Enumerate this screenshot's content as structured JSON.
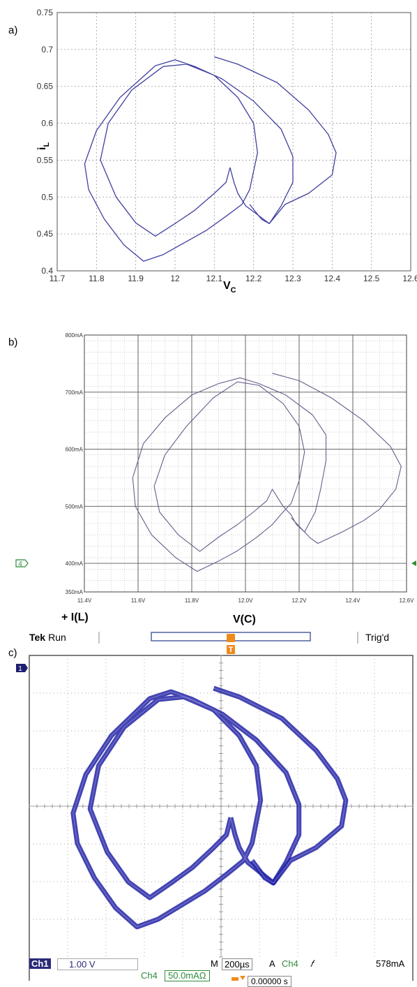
{
  "panel_labels": [
    "a)",
    "b)",
    "c)"
  ],
  "chart_data": [
    {
      "type": "line",
      "panel": "a)",
      "xlabel": "V",
      "xlabel_sub": "C",
      "ylabel": "i",
      "ylabel_sub": "L",
      "xlim": [
        11.7,
        12.6
      ],
      "ylim": [
        0.4,
        0.75
      ],
      "x_ticks": [
        "11.7",
        "11.8",
        "11.9",
        "12",
        "12.1",
        "12.2",
        "12.3",
        "12.4",
        "12.5",
        "12.6"
      ],
      "y_ticks": [
        "0.4",
        "0.45",
        "0.5",
        "0.55",
        "0.6",
        "0.65",
        "0.7",
        "0.75"
      ],
      "grid": true,
      "color": "#3f3fa0",
      "series": [
        {
          "points": [
            [
              12.14,
              0.54
            ],
            [
              12.13,
              0.52
            ],
            [
              12.1,
              0.505
            ],
            [
              12.05,
              0.482
            ],
            [
              12.0,
              0.464
            ],
            [
              11.95,
              0.447
            ],
            [
              11.9,
              0.465
            ],
            [
              11.85,
              0.5
            ],
            [
              11.81,
              0.55
            ],
            [
              11.83,
              0.6
            ],
            [
              11.89,
              0.645
            ],
            [
              11.97,
              0.677
            ],
            [
              12.03,
              0.68
            ],
            [
              12.1,
              0.665
            ],
            [
              12.16,
              0.635
            ],
            [
              12.2,
              0.6
            ],
            [
              12.21,
              0.56
            ],
            [
              12.19,
              0.51
            ],
            [
              12.17,
              0.49
            ],
            [
              12.13,
              0.474
            ],
            [
              12.08,
              0.455
            ],
            [
              12.02,
              0.437
            ],
            [
              11.97,
              0.422
            ],
            [
              11.92,
              0.413
            ],
            [
              11.87,
              0.435
            ],
            [
              11.82,
              0.47
            ],
            [
              11.78,
              0.51
            ],
            [
              11.77,
              0.545
            ],
            [
              11.8,
              0.59
            ],
            [
              11.86,
              0.635
            ],
            [
              11.95,
              0.678
            ],
            [
              12.0,
              0.686
            ],
            [
              12.05,
              0.677
            ],
            [
              12.12,
              0.66
            ],
            [
              12.2,
              0.63
            ],
            [
              12.27,
              0.592
            ],
            [
              12.3,
              0.555
            ],
            [
              12.3,
              0.52
            ],
            [
              12.27,
              0.488
            ],
            [
              12.24,
              0.464
            ],
            [
              12.2,
              0.48
            ],
            [
              12.18,
              0.488
            ],
            [
              12.16,
              0.505
            ],
            [
              12.15,
              0.52
            ],
            [
              12.14,
              0.54
            ]
          ]
        },
        {
          "points": [
            [
              12.1,
              0.69
            ],
            [
              12.16,
              0.68
            ],
            [
              12.26,
              0.655
            ],
            [
              12.34,
              0.618
            ],
            [
              12.39,
              0.585
            ],
            [
              12.41,
              0.56
            ],
            [
              12.4,
              0.53
            ],
            [
              12.34,
              0.505
            ],
            [
              12.28,
              0.49
            ],
            [
              12.24,
              0.464
            ],
            [
              12.22,
              0.47
            ],
            [
              12.19,
              0.49
            ]
          ]
        }
      ]
    },
    {
      "type": "line",
      "panel": "b)",
      "xlabel": "V(C)",
      "legend_label": "+ I(L)",
      "xlim": [
        11.4,
        12.6
      ],
      "ylim": [
        350,
        800
      ],
      "x_ticks": [
        "11.4V",
        "11.6V",
        "11.8V",
        "12.0V",
        "12.2V",
        "12.4V",
        "12.6V"
      ],
      "y_ticks": [
        "350mA",
        "400mA",
        "500mA",
        "600mA",
        "700mA",
        "800mA"
      ],
      "grid": true,
      "color": "#6a5c8a",
      "series": [
        {
          "points": [
            [
              12.1,
              530
            ],
            [
              12.08,
              510
            ],
            [
              12.03,
              490
            ],
            [
              11.97,
              468
            ],
            [
              11.9,
              446
            ],
            [
              11.83,
              421
            ],
            [
              11.75,
              450
            ],
            [
              11.68,
              490
            ],
            [
              11.66,
              535
            ],
            [
              11.7,
              590
            ],
            [
              11.78,
              640
            ],
            [
              11.88,
              690
            ],
            [
              11.97,
              718
            ],
            [
              12.05,
              712
            ],
            [
              12.14,
              680
            ],
            [
              12.2,
              640
            ],
            [
              12.22,
              595
            ],
            [
              12.2,
              545
            ],
            [
              12.17,
              505
            ],
            [
              12.14,
              490
            ],
            [
              12.1,
              468
            ],
            [
              12.04,
              445
            ],
            [
              11.97,
              422
            ],
            [
              11.9,
              404
            ],
            [
              11.82,
              386
            ],
            [
              11.74,
              410
            ],
            [
              11.65,
              450
            ],
            [
              11.59,
              500
            ],
            [
              11.58,
              550
            ],
            [
              11.62,
              610
            ],
            [
              11.7,
              655
            ],
            [
              11.8,
              695
            ],
            [
              11.9,
              715
            ],
            [
              11.98,
              725
            ],
            [
              12.05,
              715
            ],
            [
              12.15,
              695
            ],
            [
              12.25,
              660
            ],
            [
              12.3,
              625
            ],
            [
              12.3,
              580
            ],
            [
              12.28,
              530
            ],
            [
              12.26,
              490
            ],
            [
              12.22,
              455
            ],
            [
              12.19,
              468
            ],
            [
              12.17,
              485
            ],
            [
              12.14,
              500
            ],
            [
              12.1,
              530
            ]
          ]
        },
        {
          "points": [
            [
              12.1,
              733
            ],
            [
              12.2,
              720
            ],
            [
              12.32,
              690
            ],
            [
              12.44,
              650
            ],
            [
              12.54,
              605
            ],
            [
              12.58,
              570
            ],
            [
              12.56,
              530
            ],
            [
              12.5,
              495
            ],
            [
              12.44,
              475
            ],
            [
              12.36,
              455
            ],
            [
              12.27,
              435
            ],
            [
              12.24,
              445
            ],
            [
              12.17,
              480
            ]
          ]
        }
      ]
    }
  ],
  "scope": {
    "brand": "Tek",
    "status": "Run",
    "trigger_status": "Trig'd",
    "trigger_marker": "T",
    "ch4_marker": "4",
    "ch1_marker": "1",
    "ch1_label": "Ch1",
    "ch1_scale": "1.00 V",
    "timebase_label": "M",
    "timebase_value": "200µs",
    "trigger_mode_label": "A",
    "trigger_channel": "Ch4",
    "trigger_slope": "𝑓",
    "trigger_level": "578mA",
    "ch4_label": "Ch4",
    "ch4_scale": "50.0mAΩ",
    "position_value": "0.00000 s",
    "trace_color": "#2323a6",
    "ch4_color": "#2e8b3a",
    "trigger_color": "#f08a1c"
  }
}
